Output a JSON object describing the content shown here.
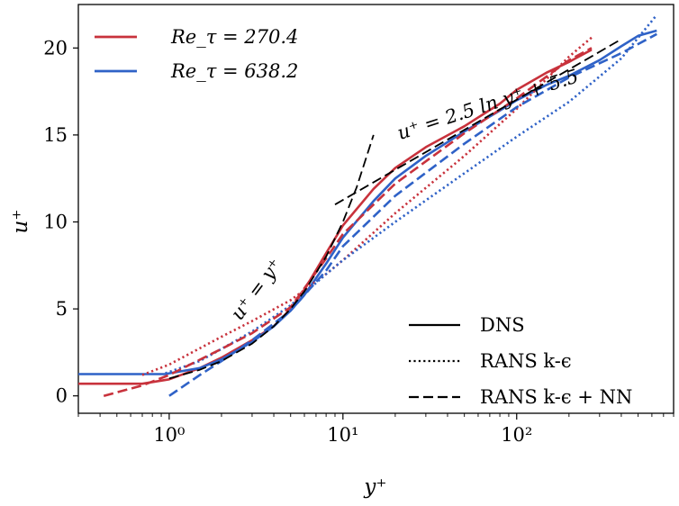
{
  "chart_data": {
    "type": "line",
    "xscale": "log",
    "xlim": [
      0.3,
      800
    ],
    "ylim": [
      -1,
      22.5
    ],
    "xlabel": "y⁺",
    "ylabel": "u⁺",
    "x_ticks": [
      {
        "value": 1,
        "label": "10⁰"
      },
      {
        "value": 10,
        "label": "10¹"
      },
      {
        "value": 100,
        "label": "10²"
      }
    ],
    "y_ticks": [
      0,
      5,
      10,
      15,
      20
    ],
    "grid": false,
    "legends": {
      "cases": {
        "placement": "top-left",
        "entries": [
          {
            "label": "Re_τ = 270.4",
            "color": "#c8323c"
          },
          {
            "label": "Re_τ = 638.2",
            "color": "#2f62c7"
          }
        ]
      },
      "models": {
        "placement": "bottom-right",
        "entries": [
          {
            "label": "DNS",
            "style": "solid"
          },
          {
            "label": "RANS k-ϵ",
            "style": "dotted"
          },
          {
            "label": "RANS k-ϵ + NN",
            "style": "dashed"
          }
        ]
      }
    },
    "annotations": [
      {
        "text": "u⁺ = y⁺"
      },
      {
        "text": "u⁺ = 2.5 ln y⁺ + 5.5"
      }
    ],
    "series": [
      {
        "name": "Re_τ = 270.4 DNS",
        "color": "#c8323c",
        "style": "solid",
        "x": [
          0.3,
          0.7,
          1,
          1.5,
          2,
          3,
          4,
          5,
          6,
          8,
          10,
          15,
          20,
          30,
          50,
          80,
          100,
          150,
          200,
          270
        ],
        "y": [
          0.7,
          0.7,
          0.95,
          1.6,
          2.2,
          3.2,
          4.0,
          5.0,
          6.1,
          8.2,
          9.8,
          11.9,
          13.1,
          14.3,
          15.5,
          16.8,
          17.6,
          18.6,
          19.2,
          19.9
        ]
      },
      {
        "name": "Re_τ = 638.2 DNS",
        "color": "#2f62c7",
        "style": "solid",
        "x": [
          0.3,
          0.95,
          1,
          1.5,
          2,
          3,
          4,
          5,
          6,
          8,
          10,
          15,
          20,
          30,
          50,
          80,
          100,
          150,
          200,
          300,
          400,
          500,
          640
        ],
        "y": [
          1.25,
          1.25,
          1.3,
          1.6,
          2.1,
          3.1,
          4.0,
          4.9,
          5.8,
          7.6,
          9.1,
          11.2,
          12.5,
          13.8,
          15.2,
          16.4,
          17.0,
          17.9,
          18.4,
          19.3,
          20.1,
          20.7,
          21.0
        ]
      },
      {
        "name": "Re_τ = 270.4 RANS k-ϵ",
        "color": "#c8323c",
        "style": "dotted",
        "x": [
          0.7,
          1,
          2,
          3,
          5,
          8,
          10,
          20,
          50,
          100,
          200,
          270
        ],
        "y": [
          1.2,
          1.8,
          3.4,
          4.3,
          5.5,
          7.0,
          7.8,
          10.5,
          13.8,
          16.5,
          19.5,
          20.6
        ]
      },
      {
        "name": "Re_τ = 638.2 RANS k-ϵ",
        "color": "#2f62c7",
        "style": "dotted",
        "x": [
          0.95,
          1.5,
          2,
          3,
          5,
          8,
          10,
          20,
          50,
          100,
          200,
          400,
          640
        ],
        "y": [
          1.3,
          2.0,
          2.7,
          3.7,
          5.2,
          7.0,
          7.8,
          10.0,
          12.8,
          14.9,
          16.9,
          19.4,
          21.9
        ]
      },
      {
        "name": "Re_τ = 270.4 RANS k-ϵ + NN",
        "color": "#c8323c",
        "style": "dashed",
        "x": [
          0.42,
          0.7,
          1,
          2,
          3,
          5,
          8,
          10,
          20,
          50,
          100,
          200,
          270
        ],
        "y": [
          0.0,
          0.6,
          1.2,
          2.7,
          3.6,
          5.1,
          7.9,
          9.3,
          12.2,
          15.1,
          17.1,
          19.3,
          20.0
        ]
      },
      {
        "name": "Re_τ = 638.2 RANS k-ϵ + NN",
        "color": "#2f62c7",
        "style": "dashed",
        "x": [
          1,
          1.5,
          2,
          3,
          5,
          8,
          10,
          20,
          50,
          100,
          200,
          400,
          640
        ],
        "y": [
          0.0,
          1.2,
          2.0,
          3.2,
          4.9,
          7.2,
          8.6,
          11.5,
          14.5,
          16.6,
          18.3,
          19.7,
          20.8
        ]
      },
      {
        "name": "u⁺ = y⁺",
        "color": "#000000",
        "style": "dashed",
        "x": [
          1,
          1.5,
          2,
          3,
          4,
          5,
          6,
          8,
          10,
          12,
          15
        ],
        "y": [
          1,
          1.5,
          2,
          3,
          4,
          5,
          6,
          8,
          10,
          12,
          15
        ]
      },
      {
        "name": "u⁺ = 2.5 ln y⁺ + 5.5",
        "color": "#000000",
        "style": "dashed",
        "x": [
          9,
          400
        ],
        "y": [
          11.0,
          20.5
        ]
      }
    ]
  }
}
